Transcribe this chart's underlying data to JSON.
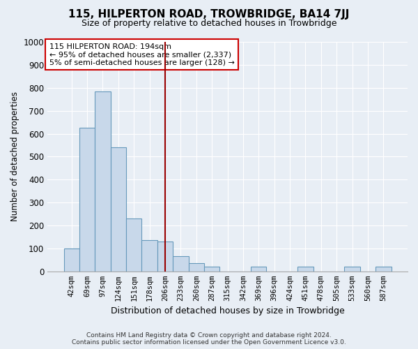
{
  "title": "115, HILPERTON ROAD, TROWBRIDGE, BA14 7JJ",
  "subtitle": "Size of property relative to detached houses in Trowbridge",
  "xlabel": "Distribution of detached houses by size in Trowbridge",
  "ylabel": "Number of detached properties",
  "bar_labels": [
    "42sqm",
    "69sqm",
    "97sqm",
    "124sqm",
    "151sqm",
    "178sqm",
    "206sqm",
    "233sqm",
    "260sqm",
    "287sqm",
    "315sqm",
    "342sqm",
    "369sqm",
    "396sqm",
    "424sqm",
    "451sqm",
    "478sqm",
    "505sqm",
    "533sqm",
    "560sqm",
    "587sqm"
  ],
  "bar_values": [
    100,
    625,
    785,
    540,
    230,
    135,
    130,
    65,
    35,
    20,
    0,
    0,
    20,
    0,
    0,
    20,
    0,
    0,
    20,
    0,
    20
  ],
  "bar_color": "#c8d8ea",
  "bar_edge_color": "#6699bb",
  "ylim": [
    0,
    1000
  ],
  "yticks": [
    0,
    100,
    200,
    300,
    400,
    500,
    600,
    700,
    800,
    900,
    1000
  ],
  "vline_x": 6.0,
  "vline_color": "#990000",
  "annotation_text": "115 HILPERTON ROAD: 194sqm\n← 95% of detached houses are smaller (2,337)\n5% of semi-detached houses are larger (128) →",
  "annotation_box_color": "white",
  "annotation_box_edgecolor": "#cc0000",
  "footer_line1": "Contains HM Land Registry data © Crown copyright and database right 2024.",
  "footer_line2": "Contains public sector information licensed under the Open Government Licence v3.0.",
  "background_color": "#e8eef5",
  "grid_color": "white"
}
